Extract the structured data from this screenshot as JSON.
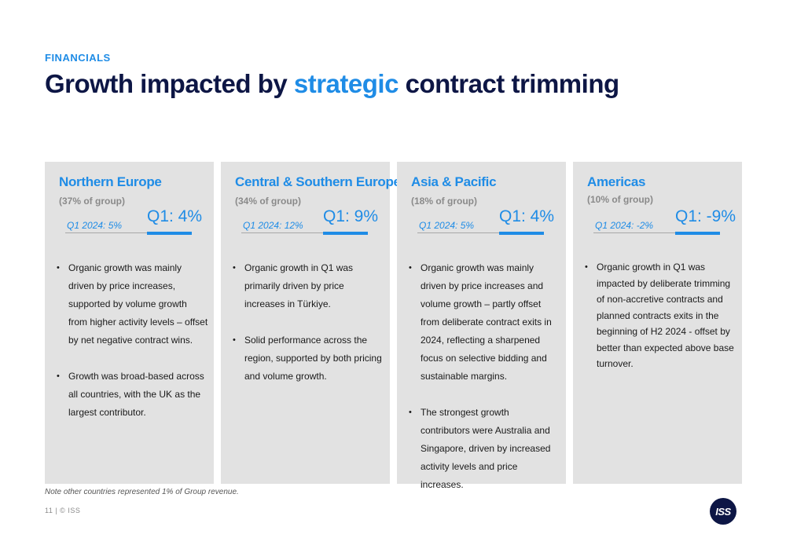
{
  "header": {
    "section_label": "FINANCIALS",
    "title_part1": "Growth impacted by ",
    "title_highlight": "strategic",
    "title_part2": " contract trimming"
  },
  "regions": [
    {
      "name": "Northern Europe",
      "share": "(37% of group)",
      "prev": "Q1 2024: 5%",
      "current": "Q1: 4%",
      "bullets": [
        "Organic growth was mainly driven by price increases, supported by volume growth from higher activity levels – offset by net negative contract wins.",
        "Growth was broad-based across all countries, with the UK as the largest contributor."
      ]
    },
    {
      "name": "Central & Southern Europe",
      "share": "(34% of group)",
      "prev": "Q1 2024: 12%",
      "current": "Q1: 9%",
      "bullets": [
        "Organic growth in Q1 was primarily driven by price increases in Türkiye.",
        "Solid performance across the region, supported by both pricing and volume growth."
      ]
    },
    {
      "name": "Asia & Pacific",
      "share": "(18% of group)",
      "prev": "Q1 2024: 5%",
      "current": "Q1: 4%",
      "bullets": [
        "Organic growth was mainly driven by price increases and volume growth – partly offset from deliberate contract exits in 2024, reflecting a sharpened focus on selective bidding and sustainable margins.",
        "The strongest growth contributors were Australia and Singapore, driven by increased activity levels and price increases."
      ]
    },
    {
      "name": "Americas",
      "share": "(10% of group)",
      "prev": "Q1 2024: -2%",
      "current": "Q1: -9%",
      "bullets": [
        "Organic growth in Q1 was impacted by deliberate trimming of non-accretive contracts and planned contracts exits in the beginning of H2 2024 - offset by better than expected above base turnover."
      ]
    }
  ],
  "footer": {
    "note": "Note other countries represented 1% of Group revenue.",
    "page": "11 | © ISS",
    "logo_text": "ISS"
  },
  "colors": {
    "accent": "#1f8ce6",
    "title": "#0d1645",
    "card_bg": "#e2e2e2"
  }
}
